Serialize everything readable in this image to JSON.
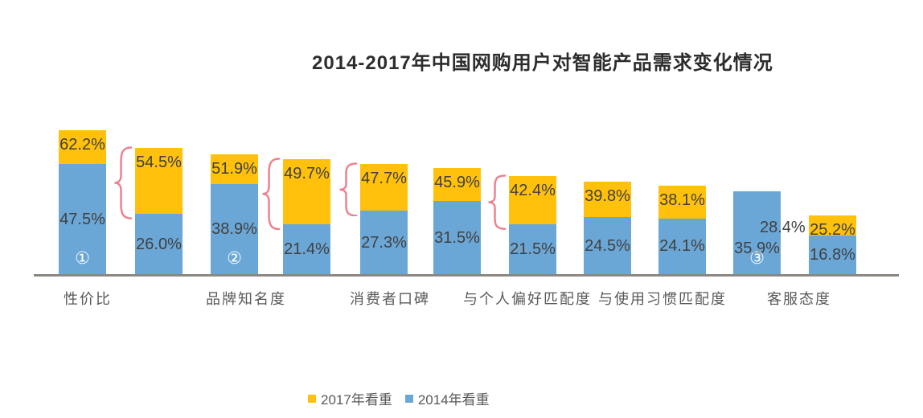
{
  "title": "2014-2017年中国网购用户对智能产品需求变化情况",
  "legend": {
    "items": [
      {
        "label": "2017年看重",
        "swatch": "yellow"
      },
      {
        "label": "2014年看重",
        "swatch": "blue"
      }
    ]
  },
  "colors": {
    "yellow": "#FFC10B",
    "blue": "#6BA7D6",
    "brace_pink": "#F08090",
    "axis_line": "#8B8782",
    "value_text": "#404040",
    "category_text": "#595959",
    "title_text": "#2D2D2D"
  },
  "chart_data": {
    "type": "bar",
    "stacked": true,
    "unit": "percent",
    "title": "2014-2017年中国网购用户对智能产品需求变化情况",
    "legend": [
      "2017年看重",
      "2014年看重"
    ],
    "legend_position": "bottom",
    "grid": false,
    "ylim": [
      0,
      70
    ],
    "note": "Blue base = 2014年看重 value; total bar height = 2017年看重 value (yellow cap = growth). Bar 10: 2017 value lower than 2014, so no yellow cap and 2017 label sits beside the bar.",
    "categories": [
      "性价比",
      "品牌知名度",
      "消费者口碑",
      "与个人偏好匹配度",
      "与使用习惯匹配度",
      "客服态度"
    ],
    "bars": [
      {
        "v2017": 62.2,
        "v2014": 47.5,
        "marker": "①",
        "category": "性价比"
      },
      {
        "v2017": 54.5,
        "v2014": 26.0,
        "brace": true
      },
      {
        "v2017": 51.9,
        "v2014": 38.9,
        "marker": "②",
        "category": "品牌知名度"
      },
      {
        "v2017": 49.7,
        "v2014": 21.4,
        "brace": true
      },
      {
        "v2017": 47.7,
        "v2014": 27.3,
        "brace": true,
        "category": "消费者口碑"
      },
      {
        "v2017": 45.9,
        "v2014": 31.5
      },
      {
        "v2017": 42.4,
        "v2014": 21.5,
        "brace": true,
        "category": "与个人偏好匹配度"
      },
      {
        "v2017": 39.8,
        "v2014": 24.5
      },
      {
        "v2017": 38.1,
        "v2014": 24.1,
        "category": "与使用习惯匹配度"
      },
      {
        "v2017": 28.4,
        "v2014": 35.9,
        "marker": "③"
      },
      {
        "v2017": 25.2,
        "v2014": 16.8,
        "category": "客服态度"
      }
    ]
  }
}
